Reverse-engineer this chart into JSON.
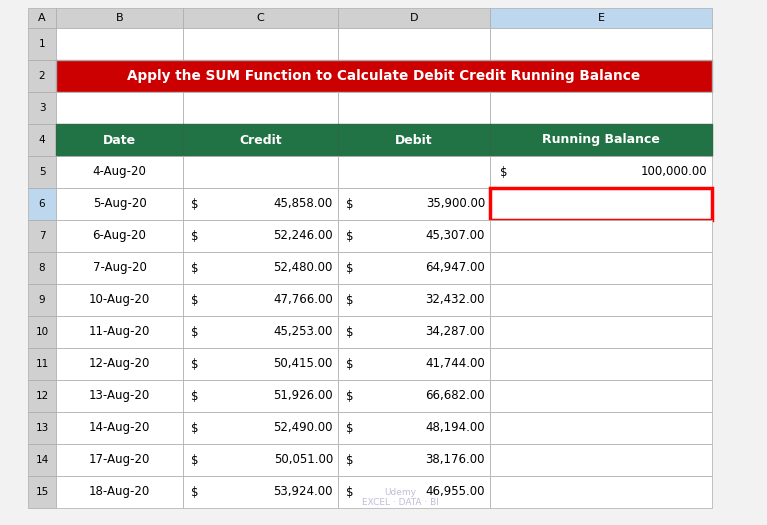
{
  "title": "Apply the SUM Function to Calculate Debit Credit Running Balance",
  "title_bg": "#CC0000",
  "title_fg": "#FFFFFF",
  "header_bg": "#217346",
  "header_fg": "#FFFFFF",
  "col_headers": [
    "Date",
    "Credit",
    "Debit",
    "Running Balance"
  ],
  "credit_vals": [
    "",
    "45,858.00",
    "52,246.00",
    "52,480.00",
    "47,766.00",
    "45,253.00",
    "50,415.00",
    "51,926.00",
    "52,490.00",
    "50,051.00",
    "53,924.00"
  ],
  "debit_vals": [
    "",
    "35,900.00",
    "45,307.00",
    "64,947.00",
    "32,432.00",
    "34,287.00",
    "41,744.00",
    "66,682.00",
    "48,194.00",
    "38,176.00",
    "46,955.00"
  ],
  "balance_vals": [
    "100,000.00",
    "",
    "",
    "",
    "",
    "",
    "",
    "",
    "",
    "",
    ""
  ],
  "dates": [
    "4-Aug-20",
    "5-Aug-20",
    "6-Aug-20",
    "7-Aug-20",
    "10-Aug-20",
    "11-Aug-20",
    "12-Aug-20",
    "13-Aug-20",
    "14-Aug-20",
    "17-Aug-20",
    "18-Aug-20"
  ],
  "col_letters": [
    "A",
    "B",
    "C",
    "D",
    "E"
  ],
  "grid_color": "#AAAAAA",
  "col_header_bg": "#D9D9D9",
  "highlight_cell_border": "#FF0000"
}
